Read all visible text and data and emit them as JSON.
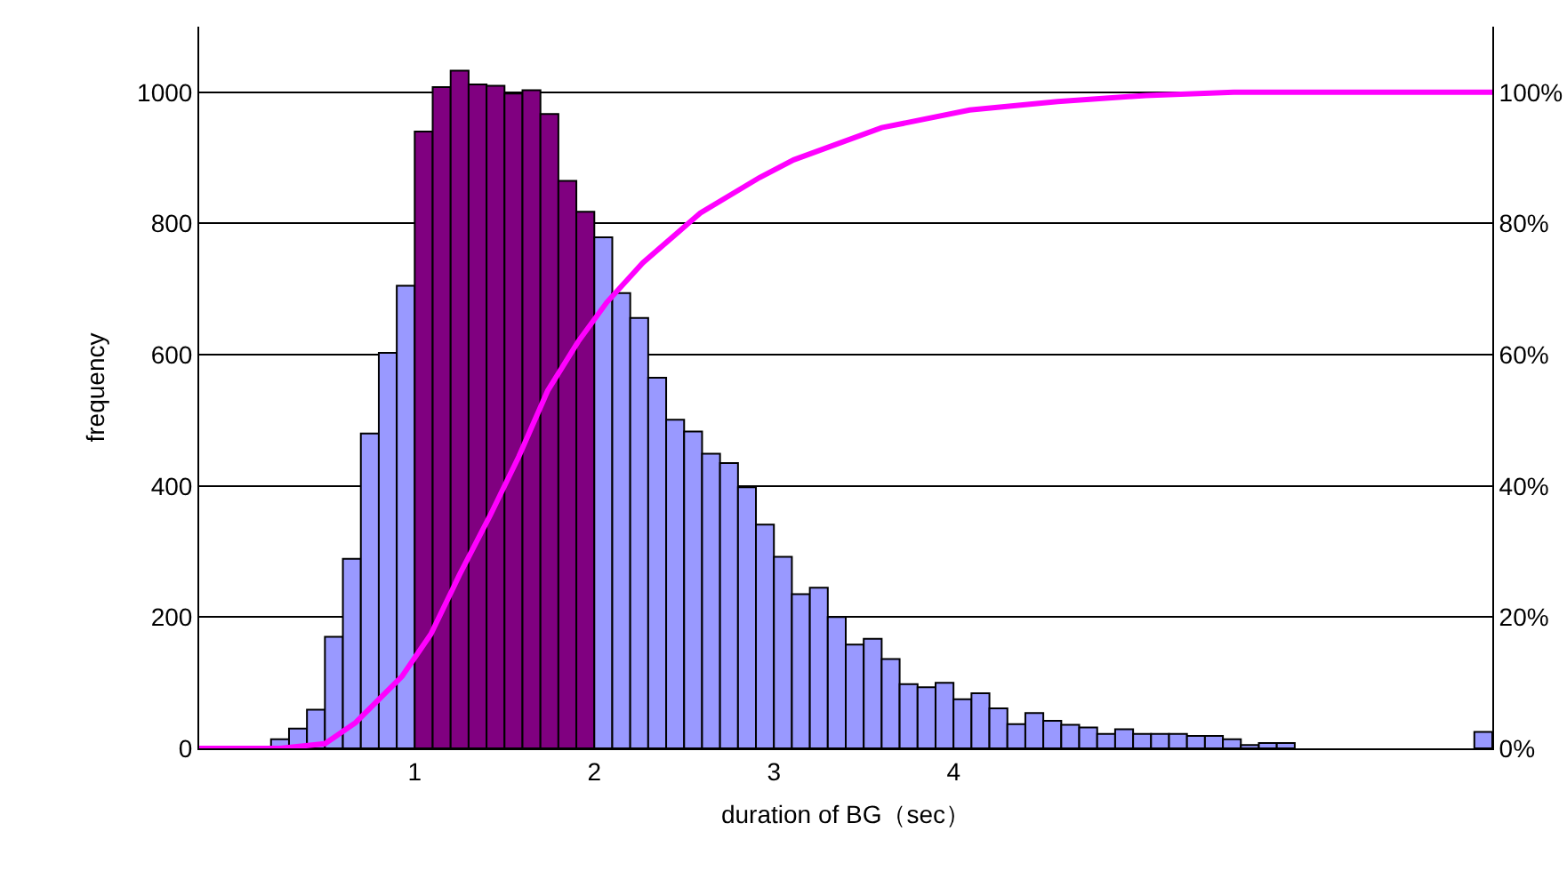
{
  "chart_data": {
    "type": "histogram",
    "xlabel": "duration of BG（sec）",
    "ylabel": "frequency",
    "xlim": [
      -0.2,
      7.0
    ],
    "xticks": [
      1,
      2,
      3,
      4
    ],
    "ylim": [
      0,
      1100
    ],
    "yticks": [
      0,
      200,
      400,
      600,
      800,
      1000
    ],
    "y2lim": [
      0,
      110
    ],
    "y2ticks": [
      {
        "value": 0,
        "label": "0%"
      },
      {
        "value": 20,
        "label": "20%"
      },
      {
        "value": 40,
        "label": "40%"
      },
      {
        "value": 60,
        "label": "60%"
      },
      {
        "value": 80,
        "label": "80%"
      },
      {
        "value": 100,
        "label": "100%"
      }
    ],
    "grid": "y",
    "bins": [
      -0.2,
      -0.1,
      0,
      0.1,
      0.2,
      0.3,
      0.4,
      0.5,
      0.6,
      0.7,
      0.8,
      0.9,
      1.0,
      1.1,
      1.2,
      1.3,
      1.4,
      1.5,
      1.6,
      1.7,
      1.8,
      1.9,
      2.0,
      2.1,
      2.2,
      2.3,
      2.4,
      2.5,
      2.6,
      2.7,
      2.8,
      2.9,
      3.0,
      3.1,
      3.2,
      3.3,
      3.4,
      3.5,
      3.6,
      3.7,
      3.8,
      3.9,
      4.0,
      4.1,
      4.2,
      4.3,
      4.4,
      4.5,
      4.6,
      4.7,
      4.8,
      4.9,
      5.0,
      5.1,
      5.2,
      5.3,
      5.4,
      5.5,
      5.6,
      5.7,
      5.8,
      5.9,
      6.0,
      6.1,
      6.2,
      6.3,
      6.4,
      6.5,
      6.6,
      6.7,
      6.8,
      6.9,
      7.0
    ],
    "series": [
      {
        "values": [
          0,
          0,
          0,
          2,
          14,
          30,
          59,
          170,
          289,
          480,
          603,
          705,
          940,
          1008,
          1033,
          1012,
          1010,
          998,
          1003,
          967,
          865,
          818,
          779,
          694,
          656,
          565,
          501,
          483,
          449,
          435,
          398,
          341,
          292,
          235,
          245,
          200,
          158,
          167,
          136,
          98,
          93,
          100,
          75,
          84,
          61,
          37,
          54,
          42,
          36,
          32,
          22,
          29,
          22,
          22,
          22,
          19,
          19,
          14,
          5,
          8,
          8,
          0,
          0,
          0,
          0,
          0,
          0,
          0,
          0,
          0,
          0,
          25
        ],
        "colors": [
          "#9999ff",
          "#9999ff",
          "#9999ff",
          "#9999ff",
          "#9999ff",
          "#9999ff",
          "#9999ff",
          "#9999ff",
          "#9999ff",
          "#9999ff",
          "#9999ff",
          "#9999ff",
          "#800080",
          "#800080",
          "#800080",
          "#800080",
          "#800080",
          "#800080",
          "#800080",
          "#800080",
          "#800080",
          "#800080",
          "#9999ff",
          "#9999ff",
          "#9999ff",
          "#9999ff",
          "#9999ff",
          "#9999ff",
          "#9999ff",
          "#9999ff",
          "#9999ff",
          "#9999ff",
          "#9999ff",
          "#9999ff",
          "#9999ff",
          "#9999ff",
          "#9999ff",
          "#9999ff",
          "#9999ff",
          "#9999ff",
          "#9999ff",
          "#9999ff",
          "#9999ff",
          "#9999ff",
          "#9999ff",
          "#9999ff",
          "#9999ff",
          "#9999ff",
          "#9999ff",
          "#9999ff",
          "#9999ff",
          "#9999ff",
          "#9999ff",
          "#9999ff",
          "#9999ff",
          "#9999ff",
          "#9999ff",
          "#9999ff",
          "#9999ff",
          "#9999ff",
          "#9999ff",
          "#9999ff",
          "#9999ff",
          "#9999ff",
          "#9999ff",
          "#9999ff",
          "#9999ff",
          "#9999ff",
          "#9999ff",
          "#9999ff",
          "#9999ff",
          "#9999ff"
        ]
      },
      {
        "type": "line",
        "axis": "y2",
        "color": "#ff00ff",
        "x": [
          -0.2,
          0.25,
          0.5,
          0.67,
          0.93,
          1.09,
          1.25,
          1.42,
          1.58,
          1.74,
          1.91,
          2.07,
          2.27,
          2.59,
          2.92,
          3.11,
          3.6,
          4.09,
          4.58,
          5.07,
          5.56,
          7.0
        ],
        "values": [
          0,
          0,
          0.7,
          3.9,
          11,
          17.4,
          26.5,
          35.5,
          44.5,
          54.5,
          62,
          68,
          74,
          81.6,
          87,
          89.7,
          94.6,
          97.3,
          98.6,
          99.5,
          100,
          100
        ]
      }
    ]
  }
}
